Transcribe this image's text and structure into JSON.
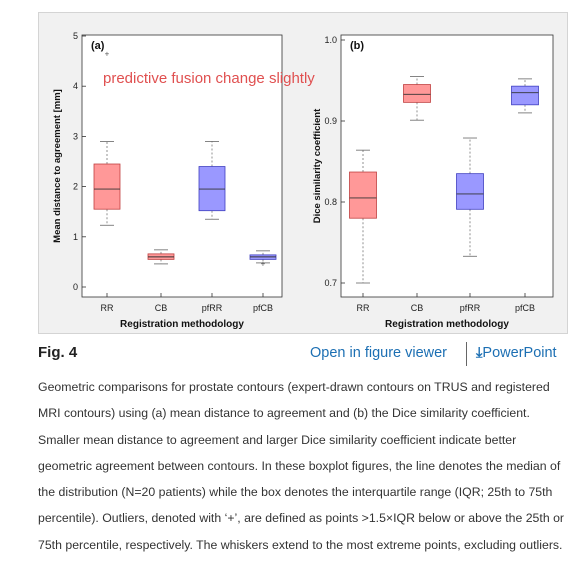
{
  "figure": {
    "overlay_text": "predictive fusion change slightly",
    "overlay_color": "#e05050",
    "panels": [
      {
        "label": "(a)",
        "ylabel": "Mean distance to agreement [mm]",
        "xlabel": "Registration methodology",
        "categories": [
          "RR",
          "CB",
          "pfRR",
          "pfCB"
        ],
        "yticks": [
          "0",
          "1",
          "2",
          "3",
          "4",
          "5"
        ]
      },
      {
        "label": "(b)",
        "ylabel": "Dice similarity coefficient",
        "xlabel": "Registration methodology",
        "categories": [
          "RR",
          "CB",
          "pfRR",
          "pfCB"
        ],
        "yticks": [
          "0.7",
          "0.8",
          "0.9",
          "1.0"
        ]
      }
    ]
  },
  "chart_data": [
    {
      "type": "box",
      "panel": "(a)",
      "xlabel": "Registration methodology",
      "ylabel": "Mean distance to agreement [mm]",
      "ylim": [
        0,
        5
      ],
      "categories": [
        "RR",
        "CB",
        "pfRR",
        "pfCB"
      ],
      "colors": [
        "#ff9898",
        "#ff9898",
        "#9a98ff",
        "#9a98ff"
      ],
      "boxes": [
        {
          "whisker_low": 1.23,
          "q1": 1.55,
          "median": 1.95,
          "q3": 2.45,
          "whisker_high": 2.9,
          "outliers": [
            4.65
          ]
        },
        {
          "whisker_low": 0.46,
          "q1": 0.55,
          "median": 0.6,
          "q3": 0.66,
          "whisker_high": 0.74,
          "outliers": []
        },
        {
          "whisker_low": 1.35,
          "q1": 1.52,
          "median": 1.95,
          "q3": 2.4,
          "whisker_high": 2.9,
          "outliers": []
        },
        {
          "whisker_low": 0.48,
          "q1": 0.55,
          "median": 0.6,
          "q3": 0.64,
          "whisker_high": 0.72,
          "outliers": [
            0.47
          ]
        }
      ]
    },
    {
      "type": "box",
      "panel": "(b)",
      "xlabel": "Registration methodology",
      "ylabel": "Dice similarity coefficient",
      "ylim": [
        0.69,
        1.0
      ],
      "categories": [
        "RR",
        "CB",
        "pfRR",
        "pfCB"
      ],
      "colors": [
        "#ff9898",
        "#ff9898",
        "#9a98ff",
        "#9a98ff"
      ],
      "boxes": [
        {
          "whisker_low": 0.7,
          "q1": 0.78,
          "median": 0.805,
          "q3": 0.837,
          "whisker_high": 0.864,
          "outliers": []
        },
        {
          "whisker_low": 0.901,
          "q1": 0.923,
          "median": 0.933,
          "q3": 0.945,
          "whisker_high": 0.955,
          "outliers": []
        },
        {
          "whisker_low": 0.733,
          "q1": 0.791,
          "median": 0.81,
          "q3": 0.835,
          "whisker_high": 0.879,
          "outliers": []
        },
        {
          "whisker_low": 0.91,
          "q1": 0.92,
          "median": 0.935,
          "q3": 0.943,
          "whisker_high": 0.952,
          "outliers": []
        }
      ]
    }
  ],
  "footer": {
    "fig_label": "Fig. 4",
    "viewer_link": "Open in figure viewer",
    "download_icon": "download-arrow-icon",
    "ppt_link": "PowerPoint"
  },
  "caption": "Geometric comparisons for prostate contours (expert-drawn contours on TRUS and registered MRI contours) using (a) mean distance to agreement and (b) the Dice similarity coefficient. Smaller mean distance to agreement and larger Dice similarity coefficient indicate better geometric agreement between contours. In these boxplot figures, the line denotes the median of the distribution (N=20 patients) while the box denotes the interquartile range (IQR; 25th to 75th percentile). Outliers, denoted with ‘+’, are defined as points >1.5×IQR below or above the 25th or 75th percentile, respectively. The whiskers extend to the most extreme points, excluding outliers."
}
